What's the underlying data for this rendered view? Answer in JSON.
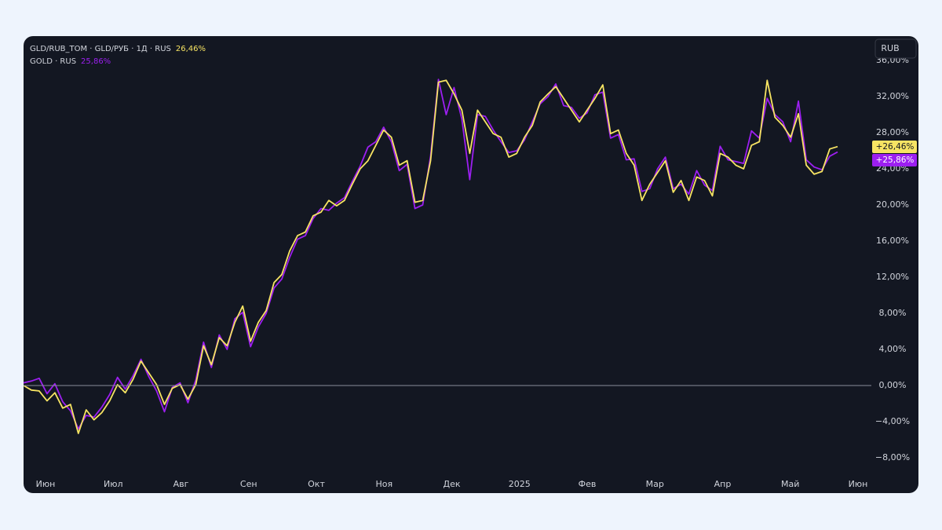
{
  "chart_data": {
    "type": "line",
    "x_labels": [
      "Июн",
      "Июл",
      "Авг",
      "Сен",
      "Окт",
      "Ноя",
      "Дек",
      "2025",
      "Фев",
      "Мар",
      "Апр",
      "Май",
      "Июн"
    ],
    "ylim": [
      -10,
      38
    ],
    "yticks": [
      {
        "value": -8,
        "label": "−8,00%"
      },
      {
        "value": -4,
        "label": "−4,00%"
      },
      {
        "value": 0,
        "label": "0,00%"
      },
      {
        "value": 4,
        "label": "4,00%"
      },
      {
        "value": 8,
        "label": "8,00%"
      },
      {
        "value": 12,
        "label": "12,00%"
      },
      {
        "value": 16,
        "label": "16,00%"
      },
      {
        "value": 20,
        "label": "20,00%"
      },
      {
        "value": 24,
        "label": "24,00%"
      },
      {
        "value": 28,
        "label": "28,00%"
      },
      {
        "value": 32,
        "label": "32,00%"
      },
      {
        "value": 36,
        "label": "36,00%"
      }
    ],
    "currency_button": "RUB",
    "series": [
      {
        "name": "GLD/RUB_TOM · GLD/РУБ · 1Д · RUS",
        "color": "#f7e463",
        "legend_value": "26,46%",
        "price_label": "+26,46%",
        "values": [
          0.0,
          -0.5,
          -0.6,
          -1.7,
          -0.8,
          -2.5,
          -2.1,
          -5.3,
          -2.7,
          -3.8,
          -3.0,
          -1.7,
          0.1,
          -0.8,
          0.7,
          2.7,
          1.4,
          0.1,
          -2.1,
          -0.3,
          0.1,
          -1.5,
          0.1,
          4.4,
          2.3,
          5.3,
          4.4,
          7.0,
          8.8,
          4.9,
          7.0,
          8.3,
          11.4,
          12.3,
          14.9,
          16.6,
          17.0,
          18.8,
          19.2,
          20.5,
          19.9,
          20.5,
          22.3,
          24.0,
          24.9,
          26.6,
          28.3,
          27.5,
          24.4,
          24.9,
          20.3,
          20.5,
          24.9,
          33.6,
          33.8,
          32.3,
          30.5,
          25.7,
          30.5,
          29.2,
          27.9,
          27.5,
          25.3,
          25.7,
          27.5,
          28.8,
          31.4,
          32.3,
          33.1,
          31.8,
          30.5,
          29.2,
          30.5,
          31.8,
          33.3,
          27.9,
          28.3,
          25.7,
          24.4,
          20.5,
          22.3,
          23.6,
          24.9,
          21.4,
          22.7,
          20.5,
          23.1,
          22.7,
          21.0,
          25.7,
          25.3,
          24.4,
          24.0,
          26.6,
          27.0,
          33.8,
          29.7,
          28.8,
          27.5,
          30.1,
          24.4,
          23.4,
          23.7,
          26.2,
          26.46
        ]
      },
      {
        "name": "GOLD · RUS",
        "color": "#9c1ff0",
        "legend_value": "25,86%",
        "price_label": "+25,86%",
        "values": [
          0.3,
          0.5,
          0.8,
          -0.9,
          0.2,
          -1.8,
          -2.8,
          -4.8,
          -3.3,
          -3.5,
          -2.4,
          -1.0,
          0.9,
          -0.4,
          1.1,
          2.9,
          1.0,
          -0.6,
          -2.9,
          -0.2,
          0.3,
          -1.9,
          0.6,
          4.8,
          2.0,
          5.6,
          4.0,
          7.4,
          8.1,
          4.3,
          6.5,
          8.0,
          10.8,
          11.8,
          14.2,
          16.2,
          16.6,
          18.5,
          19.6,
          19.4,
          20.2,
          20.8,
          22.6,
          24.3,
          26.4,
          27.0,
          28.6,
          27.0,
          23.8,
          24.5,
          19.6,
          20.0,
          25.4,
          33.9,
          30.0,
          33.0,
          29.5,
          22.8,
          30.0,
          29.8,
          28.3,
          27.0,
          25.8,
          26.0,
          27.2,
          29.2,
          31.2,
          32.0,
          33.4,
          31.0,
          30.8,
          29.6,
          30.2,
          32.2,
          32.5,
          27.4,
          27.8,
          25.0,
          25.1,
          21.5,
          21.8,
          24.0,
          25.3,
          21.8,
          22.3,
          21.2,
          23.8,
          22.2,
          21.6,
          26.5,
          25.0,
          24.8,
          24.6,
          28.2,
          27.4,
          31.8,
          30.0,
          29.2,
          27.0,
          31.5,
          25.0,
          24.2,
          23.9,
          25.4,
          25.86
        ]
      }
    ]
  }
}
